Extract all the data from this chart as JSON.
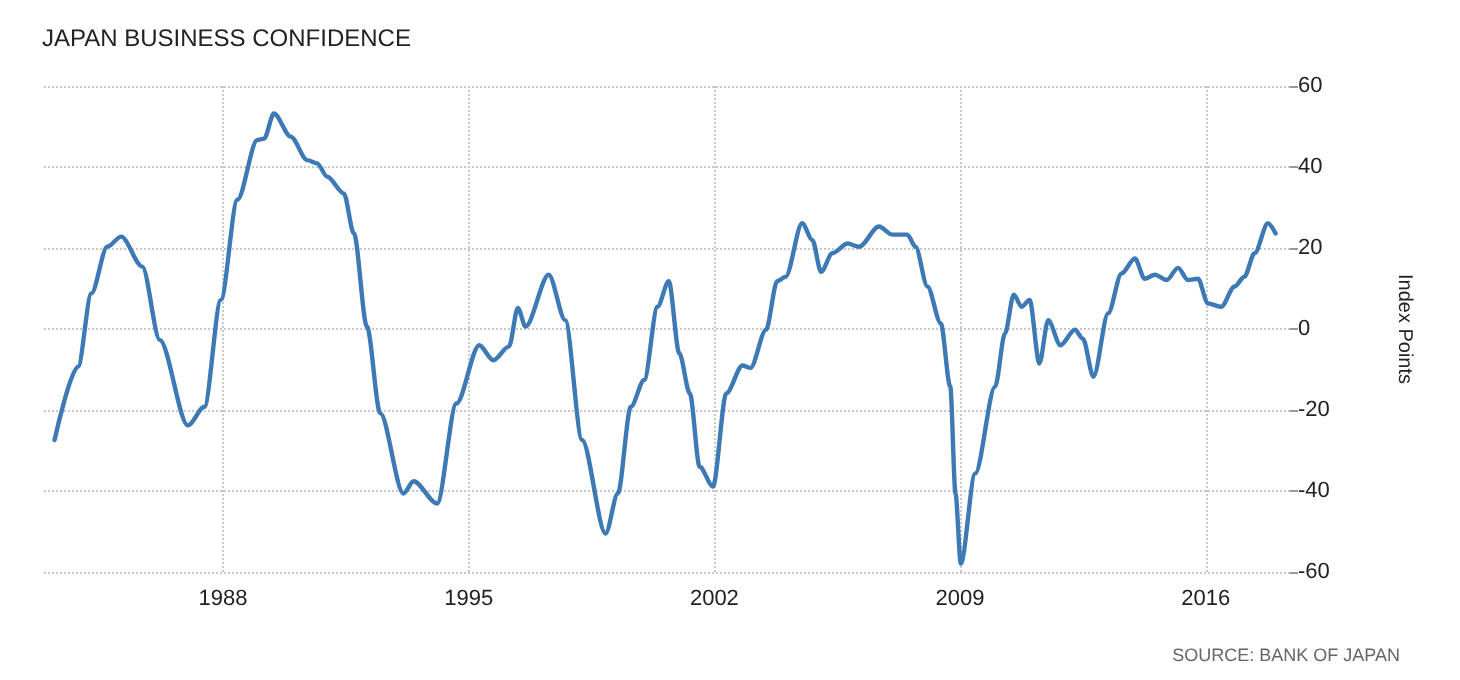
{
  "chart_data": {
    "type": "line",
    "title": "JAPAN BUSINESS CONFIDENCE",
    "ylabel": "Index Points",
    "annotations": [
      "SOURCE: BANK OF JAPAN"
    ],
    "x": [
      1983.2,
      1983.87,
      1984.25,
      1984.7,
      1985.1,
      1985.7,
      1986.2,
      1987.0,
      1987.47,
      1987.94,
      1988.41,
      1988.98,
      1989.17,
      1989.45,
      1989.93,
      1990.4,
      1990.68,
      1990.97,
      1991.44,
      1991.73,
      1992.1,
      1992.48,
      1993.14,
      1993.43,
      1994.1,
      1994.65,
      1995.3,
      1995.7,
      1996.15,
      1996.4,
      1996.62,
      1997.28,
      1997.75,
      1998.23,
      1998.9,
      1999.25,
      1999.62,
      2000.0,
      2000.38,
      2000.7,
      2001.0,
      2001.3,
      2001.58,
      2001.96,
      2002.34,
      2002.8,
      2003.03,
      2003.47,
      2003.79,
      2004.03,
      2004.5,
      2004.79,
      2005.04,
      2005.36,
      2005.8,
      2006.12,
      2006.69,
      2007.07,
      2007.5,
      2007.73,
      2008.07,
      2008.45,
      2008.72,
      2008.87,
      2009.02,
      2009.43,
      2010.0,
      2010.28,
      2010.53,
      2010.75,
      2010.98,
      2011.26,
      2011.51,
      2011.86,
      2012.27,
      2012.5,
      2012.8,
      2013.22,
      2013.6,
      2013.98,
      2014.26,
      2014.55,
      2014.89,
      2015.21,
      2015.49,
      2015.78,
      2016.06,
      2016.44,
      2016.82,
      2017.1,
      2017.39,
      2017.77,
      2017.99
    ],
    "series": [
      {
        "color": "#3d7ab5",
        "values": [
          -27.4,
          -9.3,
          8.8,
          20.3,
          22.8,
          15.4,
          -2.7,
          -23.8,
          -19.2,
          7.2,
          31.9,
          46.7,
          47,
          53.2,
          47.5,
          41.7,
          40.9,
          37.6,
          33.5,
          23.6,
          0.6,
          -20.8,
          -40.6,
          -37.6,
          -43.1,
          -18.4,
          -4,
          -7.7,
          -4.3,
          5.2,
          0.6,
          13.4,
          2.2,
          -27.4,
          -50.5,
          -40.6,
          -19.2,
          -12.6,
          5.5,
          11.8,
          -6,
          -15.9,
          -34,
          -38.9,
          -15.9,
          -9,
          -9.6,
          -0.2,
          11.8,
          12.9,
          26.1,
          22,
          14.1,
          18.7,
          21.1,
          20.3,
          25.3,
          23.3,
          23.3,
          20.3,
          10.5,
          1.4,
          -14.2,
          -40.6,
          -57.9,
          -35.7,
          -14.2,
          -1.1,
          8.5,
          5.5,
          7.2,
          -8.5,
          2.2,
          -4,
          -0.2,
          -2.4,
          -11.8,
          3.9,
          13.7,
          17.4,
          12.4,
          13.4,
          12.1,
          15.1,
          12.1,
          12.4,
          6.3,
          5.5,
          10.5,
          12.9,
          18.7,
          26.1,
          23.6
        ]
      }
    ],
    "xlim": [
      1982.9,
      2018.4
    ],
    "xticks": [
      1988,
      1995,
      2002,
      2009,
      2016
    ],
    "ylim": [
      -60,
      60
    ],
    "yticks": [
      -60,
      -40,
      -20,
      0,
      20,
      40,
      60
    ],
    "grid": true,
    "line_style": "solid",
    "marker": "none"
  }
}
